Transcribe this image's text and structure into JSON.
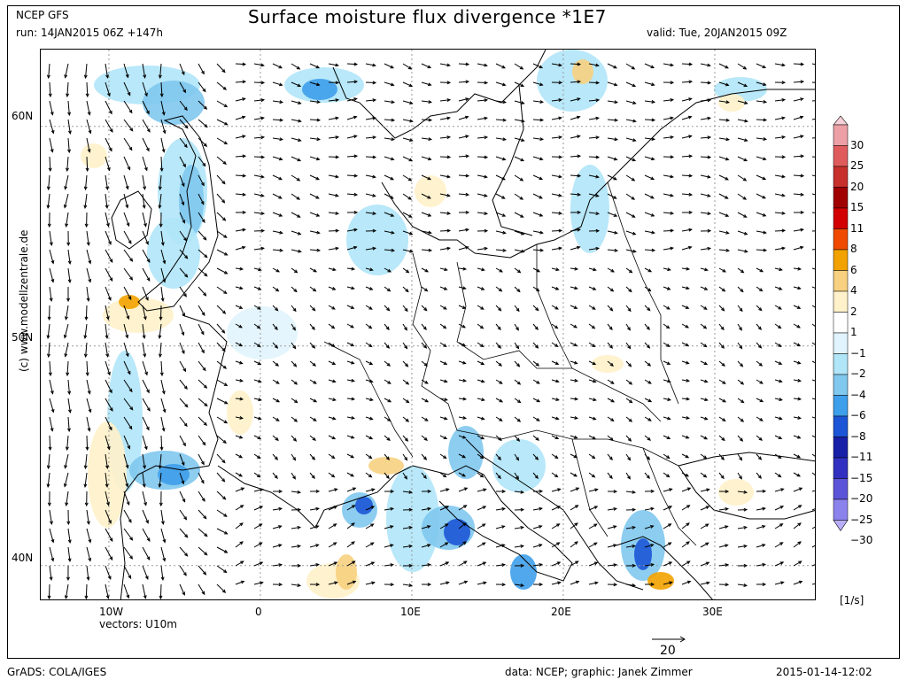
{
  "header": {
    "model": "NCEP GFS",
    "run": "run: 14JAN2015 06Z +147h",
    "title": "Surface moisture flux divergence *1E7",
    "valid": "valid: Tue, 20JAN2015 09Z"
  },
  "map": {
    "lat_labels": [
      "60N",
      "50N",
      "40N"
    ],
    "lon_labels": [
      "10W",
      "0",
      "10E",
      "20E",
      "30E"
    ],
    "vectors_label": "vectors: U10m",
    "ref_vector_value": "20"
  },
  "colorbar": {
    "unit": "[1/s]",
    "labels": [
      "30",
      "25",
      "20",
      "15",
      "11",
      "8",
      "6",
      "4",
      "2",
      "1",
      "−1",
      "−2",
      "−4",
      "−6",
      "−8",
      "−11",
      "−15",
      "−20",
      "−25",
      "−30"
    ],
    "colors": [
      "#f6d0d6",
      "#eca0a6",
      "#e05c5c",
      "#c8302c",
      "#a00000",
      "#d20000",
      "#f04a00",
      "#f2a200",
      "#f7d080",
      "#fff1c9",
      "#ffffff",
      "#e1f4fd",
      "#b0e6f8",
      "#80c8ee",
      "#3e9fea",
      "#1c56d6",
      "#1820a8",
      "#3130c0",
      "#5c54d8",
      "#8c82ec",
      "#b8aef8"
    ]
  },
  "side_credit": "(c) www.modellzentrale.de",
  "footer": {
    "left": "GrADS: COLA/IGES",
    "center": "data: NCEP; graphic: Janek Zimmer",
    "right": "2015-01-14-12:02"
  }
}
